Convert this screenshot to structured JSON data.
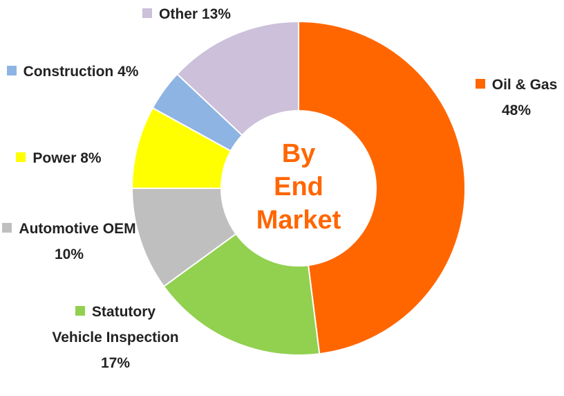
{
  "chart_data": {
    "type": "donut",
    "categories": [
      "Oil & Gas",
      "Statutory Vehicle Inspection",
      "Automotive OEM",
      "Power",
      "Construction",
      "Other"
    ],
    "values": [
      48,
      17,
      10,
      8,
      4,
      13
    ],
    "value_labels": [
      "48%",
      "17%",
      "10%",
      "8%",
      "4%",
      "13%"
    ],
    "colors": [
      "#FF6600",
      "#92D050",
      "#BFBFBF",
      "#FFFF00",
      "#8DB4E2",
      "#CCC0DA"
    ],
    "center_label": [
      "By",
      "End",
      "Market"
    ],
    "center_label_color": "#FF6600"
  }
}
